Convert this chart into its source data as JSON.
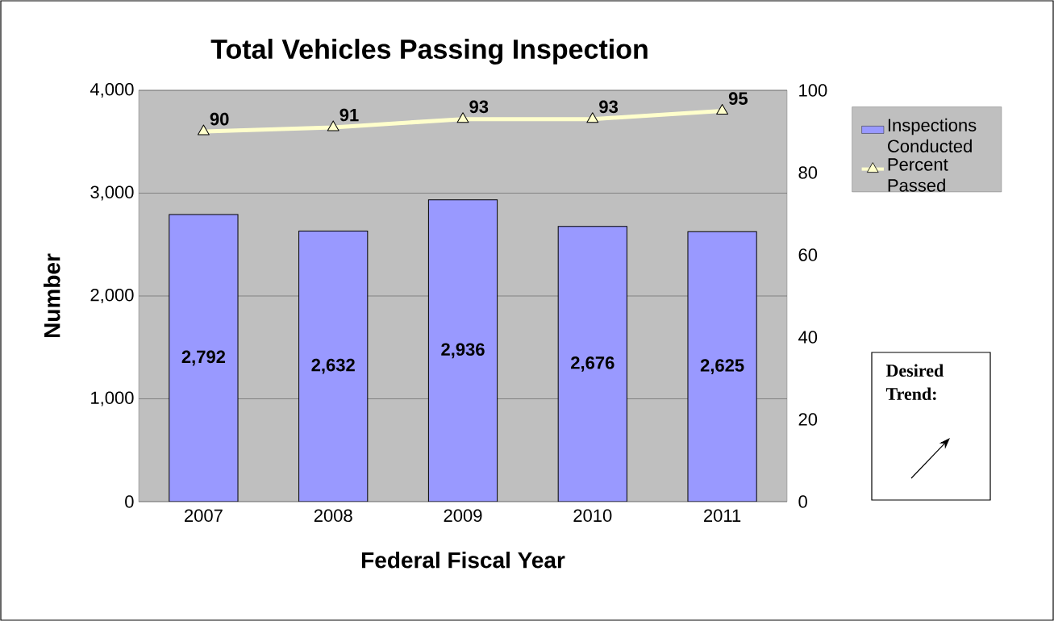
{
  "chart_data": {
    "type": "bar",
    "title": "Total Vehicles Passing Inspection",
    "xlabel": "Federal Fiscal Year",
    "ylabel": "Number",
    "categories": [
      "2007",
      "2008",
      "2009",
      "2010",
      "2011"
    ],
    "series": [
      {
        "name": "Inspections Conducted",
        "color": "#9999ff",
        "values": [
          2792,
          2632,
          2936,
          2676,
          2625
        ],
        "value_labels": [
          "2,792",
          "2,632",
          "2,936",
          "2,676",
          "2,625"
        ]
      },
      {
        "name": "Percent Passed",
        "type": "line",
        "axis": "y2",
        "color": "#ffffcc",
        "marker": "triangle",
        "values": [
          90,
          91,
          93,
          93,
          95
        ],
        "value_labels": [
          "90",
          "91",
          "93",
          "93",
          "95"
        ]
      }
    ],
    "ylim": [
      0,
      4000
    ],
    "yticks": [
      0,
      {
        "value": 1000,
        "label": "1,000"
      },
      {
        "value": 2000,
        "label": "2,000"
      },
      {
        "value": 3000,
        "label": "3,000"
      },
      {
        "value": 4000,
        "label": "4,000"
      }
    ],
    "y2lim": [
      0,
      100
    ],
    "y2ticks": [
      0,
      20,
      40,
      60,
      80,
      100
    ],
    "grid": "y",
    "legend": "right",
    "annotations": [
      "Desired Trend:"
    ]
  }
}
